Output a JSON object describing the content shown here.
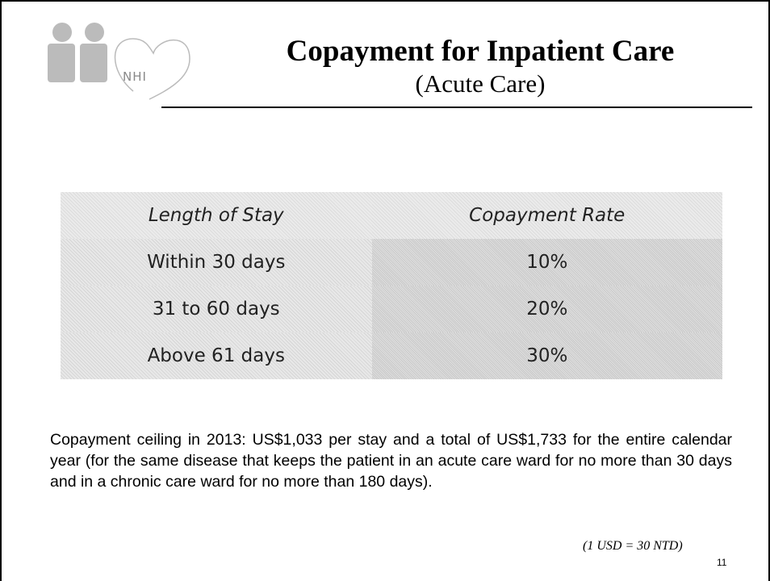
{
  "logo": {
    "text": "NHI"
  },
  "header": {
    "title": "Copayment for Inpatient Care",
    "subtitle": "(Acute Care)"
  },
  "table": {
    "columns": [
      "Length of Stay",
      "Copayment Rate"
    ],
    "rows": [
      [
        "Within 30 days",
        "10%"
      ],
      [
        "31 to 60 days",
        "20%"
      ],
      [
        "Above 61 days",
        "30%"
      ]
    ]
  },
  "note": "Copayment ceiling in 2013: US$1,033 per stay and a total of US$1,733 for the entire calendar year (for the same disease that keeps the patient in an acute care ward for no more than 30 days and in a chronic care ward for no more than 180 days).",
  "exchange_rate": "(1 USD = 30 NTD)",
  "page_number": "11"
}
